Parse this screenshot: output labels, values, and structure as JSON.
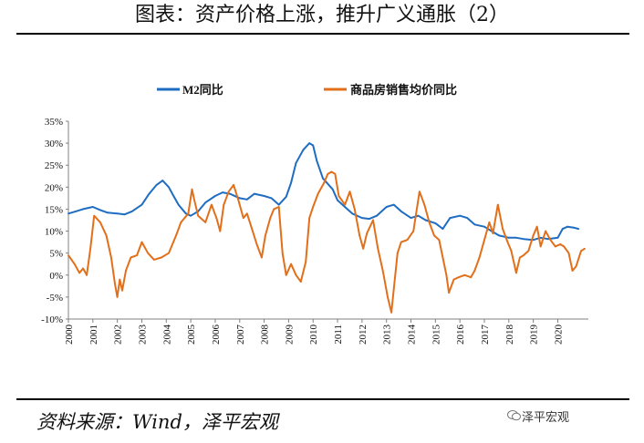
{
  "header": {
    "title": "图表：资产价格上涨，推升广义通胀（2）"
  },
  "footer": {
    "source": "资料来源：Wind，泽平宏观",
    "watermark": "泽平宏观"
  },
  "colors": {
    "m2": "#1F6DC1",
    "house": "#E26F1A"
  },
  "chart_data": {
    "type": "line",
    "title": "",
    "xlabel": "",
    "ylabel": "",
    "ylim": [
      -10,
      35
    ],
    "grid": false,
    "legend": "top",
    "y_ticks": [
      35,
      30,
      25,
      20,
      15,
      10,
      5,
      0,
      -5,
      -10
    ],
    "y_tick_labels": [
      "35%",
      "30%",
      "25%",
      "20%",
      "15%",
      "10%",
      "5%",
      "0%",
      "-5%",
      "-10%"
    ],
    "x_tick_labels": [
      "2000",
      "2001",
      "2002",
      "2003",
      "2004",
      "2005",
      "2006",
      "2007",
      "2008",
      "2009",
      "2010",
      "2011",
      "2012",
      "2013",
      "2014",
      "2015",
      "2016",
      "2017",
      "2018",
      "2019",
      "2020"
    ],
    "series": [
      {
        "name": "M2同比",
        "color_key": "m2",
        "points": [
          [
            2000.0,
            14.0
          ],
          [
            2000.3,
            14.5
          ],
          [
            2000.6,
            15.0
          ],
          [
            2001.0,
            15.5
          ],
          [
            2001.3,
            14.8
          ],
          [
            2001.6,
            14.2
          ],
          [
            2002.0,
            14.0
          ],
          [
            2002.3,
            13.8
          ],
          [
            2002.6,
            14.5
          ],
          [
            2003.0,
            16.0
          ],
          [
            2003.3,
            18.5
          ],
          [
            2003.6,
            20.5
          ],
          [
            2003.85,
            21.5
          ],
          [
            2004.1,
            20.0
          ],
          [
            2004.3,
            18.0
          ],
          [
            2004.5,
            16.0
          ],
          [
            2004.8,
            14.0
          ],
          [
            2005.0,
            13.5
          ],
          [
            2005.3,
            14.5
          ],
          [
            2005.6,
            16.5
          ],
          [
            2006.0,
            18.0
          ],
          [
            2006.3,
            18.8
          ],
          [
            2006.6,
            18.5
          ],
          [
            2007.0,
            17.5
          ],
          [
            2007.3,
            17.2
          ],
          [
            2007.6,
            18.5
          ],
          [
            2008.0,
            18.0
          ],
          [
            2008.3,
            17.5
          ],
          [
            2008.6,
            16.0
          ],
          [
            2008.9,
            17.8
          ],
          [
            2009.1,
            21.0
          ],
          [
            2009.3,
            25.5
          ],
          [
            2009.6,
            28.5
          ],
          [
            2009.85,
            30.0
          ],
          [
            2010.0,
            29.5
          ],
          [
            2010.15,
            26.0
          ],
          [
            2010.4,
            22.0
          ],
          [
            2010.8,
            19.5
          ],
          [
            2011.0,
            17.0
          ],
          [
            2011.3,
            15.5
          ],
          [
            2011.6,
            14.0
          ],
          [
            2012.0,
            13.0
          ],
          [
            2012.3,
            12.8
          ],
          [
            2012.6,
            13.5
          ],
          [
            2013.0,
            15.5
          ],
          [
            2013.3,
            16.0
          ],
          [
            2013.6,
            14.5
          ],
          [
            2014.0,
            13.0
          ],
          [
            2014.3,
            13.5
          ],
          [
            2014.6,
            12.5
          ],
          [
            2015.0,
            11.8
          ],
          [
            2015.3,
            10.5
          ],
          [
            2015.6,
            13.0
          ],
          [
            2016.0,
            13.5
          ],
          [
            2016.3,
            13.0
          ],
          [
            2016.6,
            11.5
          ],
          [
            2017.0,
            11.0
          ],
          [
            2017.3,
            10.0
          ],
          [
            2017.6,
            9.0
          ],
          [
            2018.0,
            8.5
          ],
          [
            2018.3,
            8.5
          ],
          [
            2018.6,
            8.2
          ],
          [
            2019.0,
            8.0
          ],
          [
            2019.3,
            8.5
          ],
          [
            2019.6,
            8.2
          ],
          [
            2020.0,
            8.5
          ],
          [
            2020.2,
            10.5
          ],
          [
            2020.4,
            11.0
          ],
          [
            2020.65,
            10.8
          ],
          [
            2020.85,
            10.5
          ]
        ]
      },
      {
        "name": "商品房销售均价同比",
        "color_key": "house",
        "points": [
          [
            2000.0,
            4.5
          ],
          [
            2000.25,
            2.5
          ],
          [
            2000.45,
            0.5
          ],
          [
            2000.6,
            1.5
          ],
          [
            2000.75,
            0.0
          ],
          [
            2000.9,
            6.0
          ],
          [
            2001.05,
            13.5
          ],
          [
            2001.3,
            12.0
          ],
          [
            2001.55,
            9.0
          ],
          [
            2001.75,
            4.0
          ],
          [
            2001.9,
            -2.0
          ],
          [
            2002.0,
            -5.0
          ],
          [
            2002.1,
            -1.0
          ],
          [
            2002.2,
            -3.5
          ],
          [
            2002.35,
            1.0
          ],
          [
            2002.55,
            4.0
          ],
          [
            2002.8,
            4.5
          ],
          [
            2003.0,
            7.5
          ],
          [
            2003.25,
            5.0
          ],
          [
            2003.5,
            3.5
          ],
          [
            2003.8,
            4.0
          ],
          [
            2004.1,
            5.0
          ],
          [
            2004.4,
            9.0
          ],
          [
            2004.6,
            12.0
          ],
          [
            2004.9,
            14.0
          ],
          [
            2005.05,
            19.5
          ],
          [
            2005.15,
            17.0
          ],
          [
            2005.3,
            13.5
          ],
          [
            2005.6,
            12.0
          ],
          [
            2005.85,
            16.0
          ],
          [
            2006.05,
            13.0
          ],
          [
            2006.2,
            10.0
          ],
          [
            2006.35,
            16.0
          ],
          [
            2006.55,
            19.0
          ],
          [
            2006.75,
            20.5
          ],
          [
            2006.95,
            17.0
          ],
          [
            2007.15,
            13.0
          ],
          [
            2007.3,
            14.0
          ],
          [
            2007.5,
            10.5
          ],
          [
            2007.7,
            7.0
          ],
          [
            2007.9,
            4.0
          ],
          [
            2008.05,
            9.0
          ],
          [
            2008.25,
            13.0
          ],
          [
            2008.4,
            15.0
          ],
          [
            2008.6,
            15.5
          ],
          [
            2008.75,
            5.0
          ],
          [
            2008.9,
            0.0
          ],
          [
            2009.1,
            2.5
          ],
          [
            2009.3,
            0.0
          ],
          [
            2009.5,
            -1.5
          ],
          [
            2009.7,
            3.0
          ],
          [
            2009.85,
            13.0
          ],
          [
            2010.0,
            15.5
          ],
          [
            2010.2,
            18.5
          ],
          [
            2010.45,
            21.0
          ],
          [
            2010.6,
            23.0
          ],
          [
            2010.75,
            23.5
          ],
          [
            2010.9,
            23.0
          ],
          [
            2011.05,
            18.0
          ],
          [
            2011.3,
            16.0
          ],
          [
            2011.5,
            19.0
          ],
          [
            2011.7,
            15.0
          ],
          [
            2011.9,
            9.0
          ],
          [
            2012.05,
            6.0
          ],
          [
            2012.2,
            9.5
          ],
          [
            2012.45,
            12.5
          ],
          [
            2012.65,
            6.0
          ],
          [
            2012.85,
            1.0
          ],
          [
            2013.05,
            -5.0
          ],
          [
            2013.2,
            -8.5
          ],
          [
            2013.3,
            -3.0
          ],
          [
            2013.45,
            5.0
          ],
          [
            2013.6,
            7.5
          ],
          [
            2013.85,
            8.0
          ],
          [
            2014.1,
            10.0
          ],
          [
            2014.35,
            19.0
          ],
          [
            2014.55,
            16.0
          ],
          [
            2014.75,
            12.0
          ],
          [
            2014.95,
            9.0
          ],
          [
            2015.15,
            8.0
          ],
          [
            2015.3,
            4.0
          ],
          [
            2015.45,
            0.0
          ],
          [
            2015.55,
            -4.0
          ],
          [
            2015.75,
            -1.0
          ],
          [
            2015.95,
            -0.5
          ],
          [
            2016.2,
            0.0
          ],
          [
            2016.45,
            -0.5
          ],
          [
            2016.6,
            1.0
          ],
          [
            2016.8,
            4.0
          ],
          [
            2017.0,
            8.0
          ],
          [
            2017.2,
            12.0
          ],
          [
            2017.35,
            9.5
          ],
          [
            2017.55,
            16.0
          ],
          [
            2017.75,
            10.5
          ],
          [
            2017.95,
            7.5
          ],
          [
            2018.1,
            5.5
          ],
          [
            2018.3,
            0.5
          ],
          [
            2018.45,
            4.0
          ],
          [
            2018.6,
            4.5
          ],
          [
            2018.8,
            5.5
          ],
          [
            2019.0,
            9.0
          ],
          [
            2019.15,
            11.0
          ],
          [
            2019.3,
            6.5
          ],
          [
            2019.5,
            10.0
          ],
          [
            2019.7,
            8.0
          ],
          [
            2019.9,
            6.5
          ],
          [
            2020.1,
            7.0
          ],
          [
            2020.25,
            6.5
          ],
          [
            2020.45,
            5.0
          ],
          [
            2020.6,
            1.0
          ],
          [
            2020.75,
            2.0
          ],
          [
            2020.95,
            5.5
          ],
          [
            2021.1,
            6.0
          ]
        ]
      }
    ]
  }
}
